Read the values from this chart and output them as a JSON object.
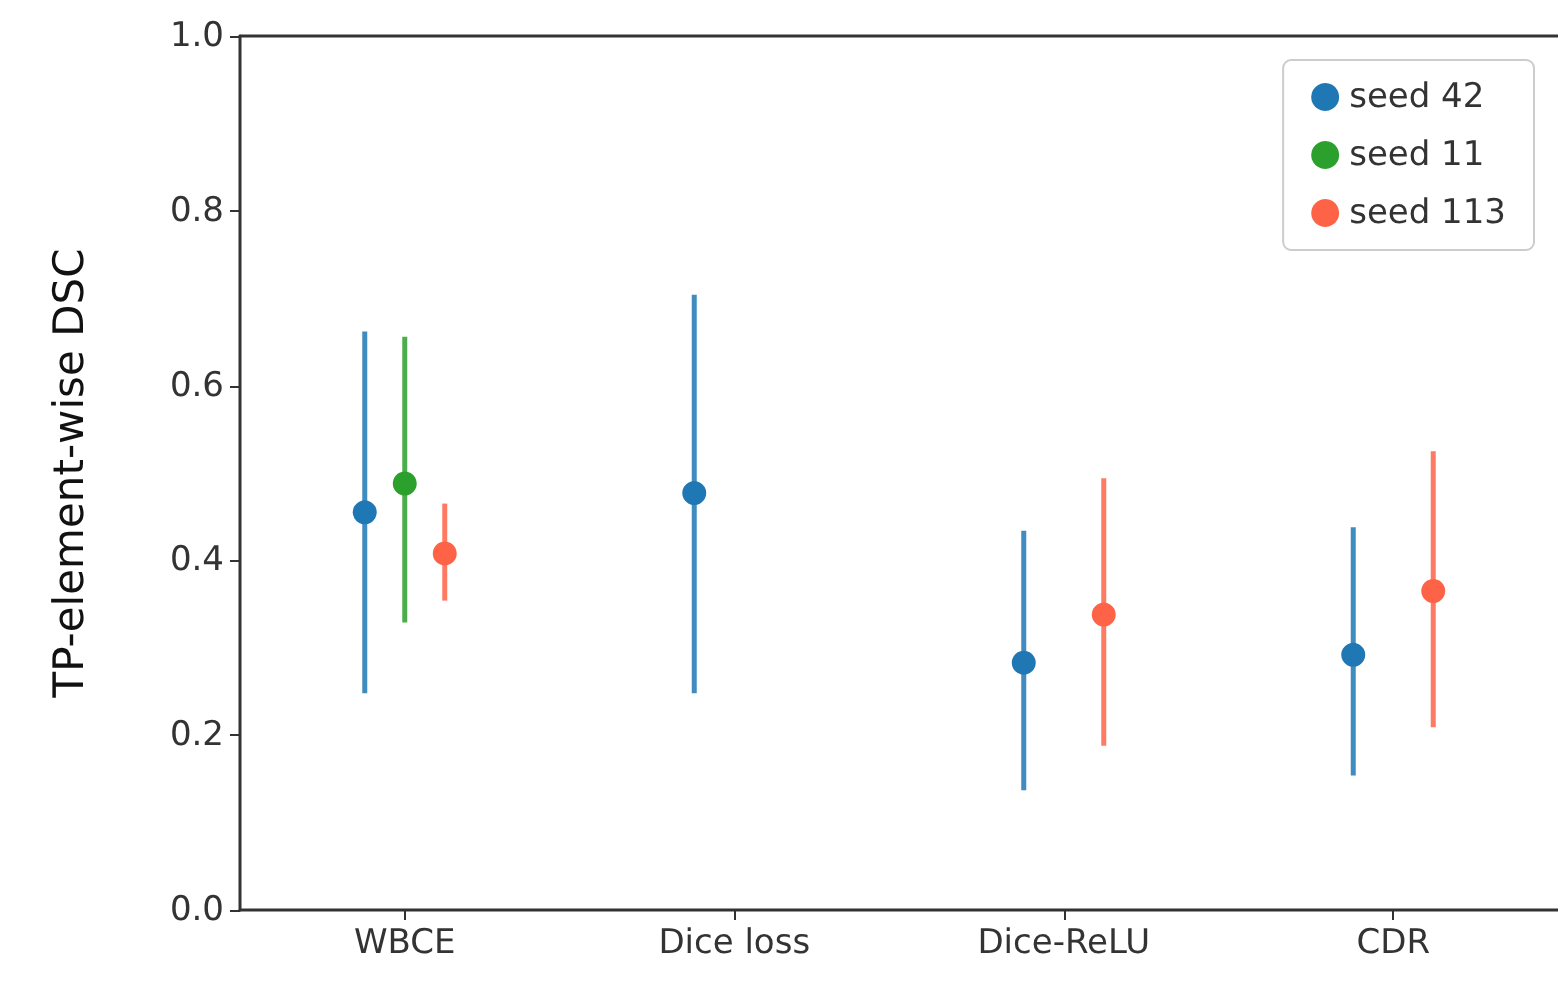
{
  "chart_data": {
    "type": "scatter",
    "ylabel": "TP-element-wise DSC",
    "categories": [
      "WBCE",
      "Dice loss",
      "Dice-ReLU",
      "CDR"
    ],
    "series": [
      {
        "name": "seed 42",
        "color": "#1f77b4",
        "values": [
          0.455,
          0.477,
          0.283,
          0.292
        ],
        "errors": [
          [
            0.248,
            0.662
          ],
          [
            0.248,
            0.704
          ],
          [
            0.137,
            0.434
          ],
          [
            0.154,
            0.438
          ]
        ]
      },
      {
        "name": "seed 11",
        "color": "#2ca02c",
        "values": [
          0.488,
          null,
          null,
          null
        ],
        "errors": [
          [
            0.329,
            0.656
          ],
          null,
          null,
          null
        ]
      },
      {
        "name": "seed 113",
        "color": "#ff6347",
        "values": [
          0.408,
          null,
          0.338,
          0.365
        ],
        "errors": [
          [
            0.354,
            0.465
          ],
          null,
          [
            0.188,
            0.494
          ],
          [
            0.209,
            0.525
          ]
        ]
      }
    ],
    "ylim": [
      0,
      1
    ],
    "yticks": [
      {
        "value": 0,
        "label": "0.0"
      },
      0.2,
      0.4,
      0.6,
      0.8,
      {
        "value": 1,
        "label": "1.0"
      }
    ],
    "grid": false,
    "legend": "top right",
    "marker": "circle"
  }
}
